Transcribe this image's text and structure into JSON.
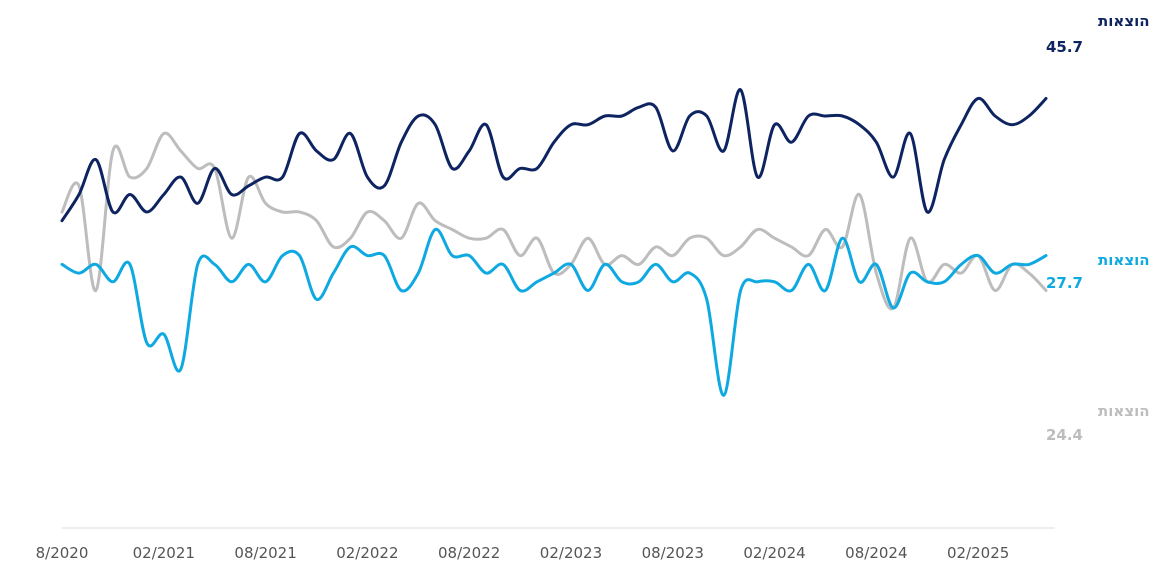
{
  "chart_data": {
    "type": "line",
    "title": "",
    "xlabel": "",
    "ylabel": "",
    "x_ticks": [
      "8/2020",
      "02/2021",
      "08/2021",
      "02/2022",
      "08/2022",
      "02/2023",
      "08/2023",
      "02/2024",
      "08/2024",
      "02/2025"
    ],
    "x_range": [
      "2020-08",
      "2025-06"
    ],
    "ylim": [
      0,
      55
    ],
    "grid": false,
    "legend": "direct labels at line ends (right)",
    "series": [
      {
        "name": "הכנסות=הוצאות",
        "end_label": "45.7",
        "color": "#0e2461",
        "x": [
          "2020-08",
          "2020-09",
          "2020-10",
          "2020-11",
          "2020-12",
          "2021-01",
          "2021-02",
          "2021-03",
          "2021-04",
          "2021-05",
          "2021-06",
          "2021-07",
          "2021-08",
          "2021-09",
          "2021-10",
          "2021-11",
          "2021-12",
          "2022-01",
          "2022-02",
          "2022-03",
          "2022-04",
          "2022-05",
          "2022-06",
          "2022-07",
          "2022-08",
          "2022-09",
          "2022-10",
          "2022-11",
          "2022-12",
          "2023-01",
          "2023-02",
          "2023-03",
          "2023-04",
          "2023-05",
          "2023-06",
          "2023-07",
          "2023-08",
          "2023-09",
          "2023-10",
          "2023-11",
          "2023-12",
          "2024-01",
          "2024-02",
          "2024-03",
          "2024-04",
          "2024-05",
          "2024-06",
          "2024-07",
          "2024-08",
          "2024-09",
          "2024-10",
          "2024-11",
          "2024-12",
          "2025-01",
          "2025-02",
          "2025-03",
          "2025-04",
          "2025-05",
          "2025-06"
        ],
        "values": [
          32,
          35,
          39,
          33,
          35,
          33,
          35,
          37,
          34,
          38,
          35,
          36,
          37,
          37,
          42,
          40,
          39,
          42,
          37,
          36,
          41,
          44,
          43,
          38,
          40,
          43,
          37,
          38,
          38,
          41,
          43,
          43,
          44,
          44,
          45,
          45,
          40,
          44,
          44,
          40,
          47,
          37,
          43,
          41,
          44,
          44,
          44,
          43,
          41,
          37,
          42,
          33,
          39,
          43,
          46,
          44,
          43,
          44,
          46
        ],
        "values_note": "monthly values within 0–55 scale"
      },
      {
        "name": "הכנסות<הוצאות",
        "end_label": "27.7",
        "color": "#0fa9e1",
        "x": [
          "2020-08",
          "2020-09",
          "2020-10",
          "2020-11",
          "2020-12",
          "2021-01",
          "2021-02",
          "2021-03",
          "2021-04",
          "2021-05",
          "2021-06",
          "2021-07",
          "2021-08",
          "2021-09",
          "2021-10",
          "2021-11",
          "2021-12",
          "2022-01",
          "2022-02",
          "2022-03",
          "2022-04",
          "2022-05",
          "2022-06",
          "2022-07",
          "2022-08",
          "2022-09",
          "2022-10",
          "2022-11",
          "2022-12",
          "2023-01",
          "2023-02",
          "2023-03",
          "2023-04",
          "2023-05",
          "2023-06",
          "2023-07",
          "2023-08",
          "2023-09",
          "2023-10",
          "2023-11",
          "2023-12",
          "2024-01",
          "2024-02",
          "2024-03",
          "2024-04",
          "2024-05",
          "2024-06",
          "2024-07",
          "2024-08",
          "2024-09",
          "2024-10",
          "2024-11",
          "2024-12",
          "2025-01",
          "2025-02",
          "2025-03",
          "2025-04",
          "2025-05",
          "2025-06"
        ],
        "values": [
          27,
          26,
          27,
          25,
          27,
          18,
          19,
          15,
          27,
          27,
          25,
          27,
          25,
          28,
          28,
          23,
          26,
          29,
          28,
          28,
          24,
          26,
          31,
          28,
          28,
          26,
          27,
          24,
          25,
          26,
          27,
          24,
          27,
          25,
          25,
          27,
          25,
          26,
          23,
          12,
          24,
          25,
          25,
          24,
          27,
          24,
          30,
          25,
          27,
          22,
          26,
          25,
          25,
          27,
          28,
          26,
          27,
          27,
          28
        ],
        "values_note": "monthly values within 0–55 scale"
      },
      {
        "name": "הכנסות>הוצאות",
        "end_label": "24.4",
        "color": "#bdbdbd",
        "x": [
          "2020-08",
          "2020-09",
          "2020-10",
          "2020-11",
          "2020-12",
          "2021-01",
          "2021-02",
          "2021-03",
          "2021-04",
          "2021-05",
          "2021-06",
          "2021-07",
          "2021-08",
          "2021-09",
          "2021-10",
          "2021-11",
          "2021-12",
          "2022-01",
          "2022-02",
          "2022-03",
          "2022-04",
          "2022-05",
          "2022-06",
          "2022-07",
          "2022-08",
          "2022-09",
          "2022-10",
          "2022-11",
          "2022-12",
          "2023-01",
          "2023-02",
          "2023-03",
          "2023-04",
          "2023-05",
          "2023-06",
          "2023-07",
          "2023-08",
          "2023-09",
          "2023-10",
          "2023-11",
          "2023-12",
          "2024-01",
          "2024-02",
          "2024-03",
          "2024-04",
          "2024-05",
          "2024-06",
          "2024-07",
          "2024-08",
          "2024-09",
          "2024-10",
          "2024-11",
          "2024-12",
          "2025-01",
          "2025-02",
          "2025-03",
          "2025-04",
          "2025-05",
          "2025-06"
        ],
        "values": [
          33,
          36,
          24,
          40,
          37,
          38,
          42,
          40,
          38,
          38,
          30,
          37,
          34,
          33,
          33,
          32,
          29,
          30,
          33,
          32,
          30,
          34,
          32,
          31,
          30,
          30,
          31,
          28,
          30,
          26,
          27,
          30,
          27,
          28,
          27,
          29,
          28,
          30,
          30,
          28,
          29,
          31,
          30,
          29,
          28,
          31,
          29,
          35,
          26,
          22,
          30,
          25,
          27,
          26,
          28,
          24,
          27,
          26,
          24
        ],
        "values_note": "monthly values within 0–55 scale"
      }
    ]
  }
}
